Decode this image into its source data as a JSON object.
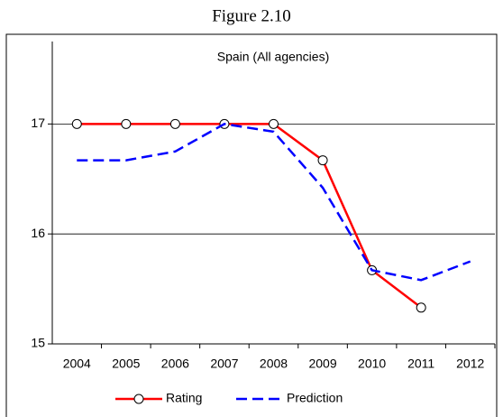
{
  "figure": "Figure 2.10",
  "chart_data": {
    "type": "line",
    "title": "Spain (All agencies)",
    "categories": [
      "2004",
      "2005",
      "2006",
      "2007",
      "2008",
      "2009",
      "2010",
      "2011",
      "2012"
    ],
    "series": [
      {
        "name": "Rating",
        "color": "#ff0000",
        "values": [
          17,
          17,
          17,
          17,
          17,
          16.67,
          15.67,
          15.33,
          null
        ]
      },
      {
        "name": "Prediction",
        "color": "#0000ff",
        "values": [
          16.67,
          16.67,
          16.75,
          17.0,
          16.93,
          16.42,
          15.67,
          15.58,
          15.75
        ]
      }
    ],
    "ylim": [
      15,
      17.75
    ],
    "yticks": [
      15,
      16,
      17
    ],
    "grid": true
  }
}
